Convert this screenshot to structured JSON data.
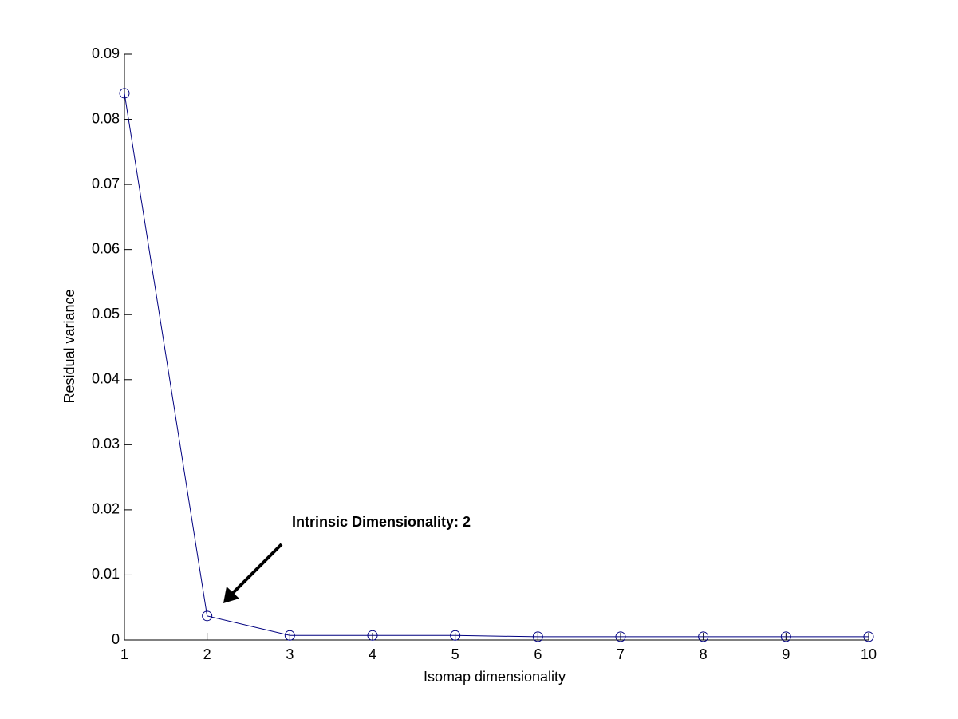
{
  "chart_data": {
    "type": "line",
    "x_label": "Isomap dimensionality",
    "y_label": "Residual variance",
    "annotation": "Intrinsic Dimensionality: 2",
    "x": [
      1,
      2,
      3,
      4,
      5,
      6,
      7,
      8,
      9,
      10
    ],
    "series": [
      {
        "color": "#000080",
        "values": [
          0.084,
          0.0037,
          0.0007,
          0.0007,
          0.0007,
          0.0005,
          0.0005,
          0.0005,
          0.0005,
          0.0005
        ]
      }
    ],
    "xlim": [
      1,
      10
    ],
    "xticks": [
      1,
      2,
      3,
      4,
      5,
      6,
      7,
      8,
      9,
      10
    ],
    "ylim": [
      0,
      0.09
    ],
    "yticks": [
      0,
      0.01,
      0.02,
      0.03,
      0.04,
      0.05,
      0.06,
      0.07,
      0.08,
      0.09
    ],
    "grid": false
  }
}
